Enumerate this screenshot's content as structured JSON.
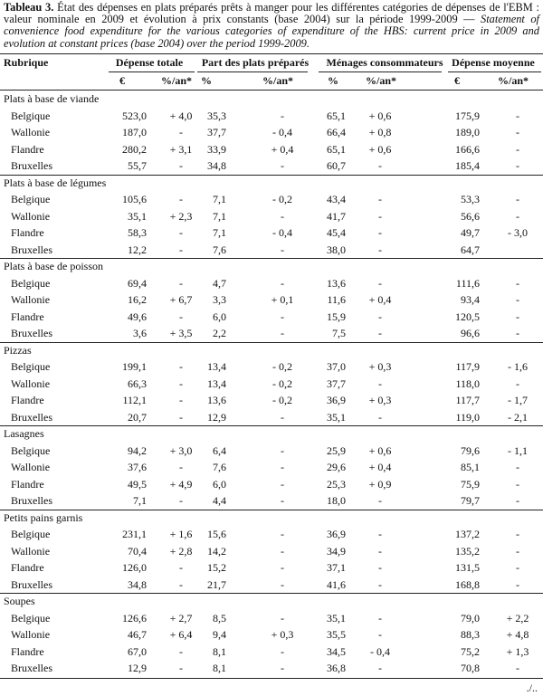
{
  "caption": {
    "label": "Tableau 3.",
    "text_fr": "État des dépenses en plats préparés prêts à manger pour les différentes catégories de dépenses de l'EBM : valeur nominale en 2009 et évolution à prix constants (base 2004) sur la période 1999-2009 — ",
    "text_en": "Statement of convenience food expenditure for the various categories of expenditure of the HBS: current price in 2009 and evolution at constant prices (base 2004) over the period 1999-2009."
  },
  "header": {
    "rubrique": "Rubrique",
    "groups": [
      "Dépense totale",
      "Part des plats préparés",
      "Ménages consommateurs",
      "Dépense moyenne"
    ],
    "subheaders": [
      "€",
      "%/an*",
      "%",
      "%/an*",
      "%",
      "%/an*",
      "€",
      "%/an*"
    ]
  },
  "sections": [
    {
      "title": "Plats à base de viande",
      "rows": [
        {
          "region": "Belgique",
          "cells": [
            "523,0",
            "+ 4,0",
            "35,3",
            "-",
            "65,1",
            "+ 0,6",
            "175,9",
            "-"
          ]
        },
        {
          "region": "Wallonie",
          "cells": [
            "187,0",
            "-",
            "37,7",
            "- 0,4",
            "66,4",
            "+ 0,8",
            "189,0",
            "-"
          ]
        },
        {
          "region": "Flandre",
          "cells": [
            "280,2",
            "+ 3,1",
            "33,9",
            "+ 0,4",
            "65,1",
            "+ 0,6",
            "166,6",
            "-"
          ]
        },
        {
          "region": "Bruxelles",
          "cells": [
            "55,7",
            "-",
            "34,8",
            "-",
            "60,7",
            "-",
            "185,4",
            "-"
          ]
        }
      ]
    },
    {
      "title": "Plats à base de légumes",
      "rows": [
        {
          "region": "Belgique",
          "cells": [
            "105,6",
            "-",
            "7,1",
            "- 0,2",
            "43,4",
            "-",
            "53,3",
            "-"
          ]
        },
        {
          "region": "Wallonie",
          "cells": [
            "35,1",
            "+ 2,3",
            "7,1",
            "-",
            "41,7",
            "-",
            "56,6",
            "-"
          ]
        },
        {
          "region": "Flandre",
          "cells": [
            "58,3",
            "-",
            "7,1",
            "- 0,4",
            "45,4",
            "-",
            "49,7",
            "- 3,0"
          ]
        },
        {
          "region": "Bruxelles",
          "cells": [
            "12,2",
            "-",
            "7,6",
            "-",
            "38,0",
            "-",
            "64,7",
            null
          ]
        }
      ]
    },
    {
      "title": "Plats à base de poisson",
      "rows": [
        {
          "region": "Belgique",
          "cells": [
            "69,4",
            "-",
            "4,7",
            "-",
            "13,6",
            "-",
            "111,6",
            "-"
          ]
        },
        {
          "region": "Wallonie",
          "cells": [
            "16,2",
            "+ 6,7",
            "3,3",
            "+ 0,1",
            "11,6",
            "+ 0,4",
            "93,4",
            "-"
          ]
        },
        {
          "region": "Flandre",
          "cells": [
            "49,6",
            "-",
            "6,0",
            "-",
            "15,9",
            "-",
            "120,5",
            "-"
          ]
        },
        {
          "region": "Bruxelles",
          "cells": [
            "3,6",
            "+ 3,5",
            "2,2",
            "-",
            "7,5",
            "-",
            "96,6",
            "-"
          ]
        }
      ]
    },
    {
      "title": "Pizzas",
      "rows": [
        {
          "region": "Belgique",
          "cells": [
            "199,1",
            "-",
            "13,4",
            "- 0,2",
            "37,0",
            "+ 0,3",
            "117,9",
            "- 1,6"
          ]
        },
        {
          "region": "Wallonie",
          "cells": [
            "66,3",
            "-",
            "13,4",
            "- 0,2",
            "37,7",
            "-",
            "118,0",
            "-"
          ]
        },
        {
          "region": "Flandre",
          "cells": [
            "112,1",
            "-",
            "13,6",
            "- 0,2",
            "36,9",
            "+ 0,3",
            "117,7",
            "- 1,7"
          ]
        },
        {
          "region": "Bruxelles",
          "cells": [
            "20,7",
            "-",
            "12,9",
            "-",
            "35,1",
            "-",
            "119,0",
            "- 2,1"
          ]
        }
      ]
    },
    {
      "title": "Lasagnes",
      "rows": [
        {
          "region": "Belgique",
          "cells": [
            "94,2",
            "+ 3,0",
            "6,4",
            "-",
            "25,9",
            "+ 0,6",
            "79,6",
            "- 1,1"
          ]
        },
        {
          "region": "Wallonie",
          "cells": [
            "37,6",
            "-",
            "7,6",
            "-",
            "29,6",
            "+ 0,4",
            "85,1",
            "-"
          ]
        },
        {
          "region": "Flandre",
          "cells": [
            "49,5",
            "+ 4,9",
            "6,0",
            "-",
            "25,3",
            "+ 0,9",
            "75,9",
            "-"
          ]
        },
        {
          "region": "Bruxelles",
          "cells": [
            "7,1",
            "-",
            "4,4",
            "-",
            "18,0",
            "-",
            "79,7",
            "-"
          ]
        }
      ]
    },
    {
      "title": "Petits pains garnis",
      "rows": [
        {
          "region": "Belgique",
          "cells": [
            "231,1",
            "+ 1,6",
            "15,6",
            "-",
            "36,9",
            "-",
            "137,2",
            "-"
          ]
        },
        {
          "region": "Wallonie",
          "cells": [
            "70,4",
            "+ 2,8",
            "14,2",
            "-",
            "34,9",
            "-",
            "135,2",
            "-"
          ]
        },
        {
          "region": "Flandre",
          "cells": [
            "126,0",
            "-",
            "15,2",
            "-",
            "37,1",
            "-",
            "131,5",
            "-"
          ]
        },
        {
          "region": "Bruxelles",
          "cells": [
            "34,8",
            "-",
            "21,7",
            "-",
            "41,6",
            "-",
            "168,8",
            "-"
          ]
        }
      ]
    },
    {
      "title": "Soupes",
      "rows": [
        {
          "region": "Belgique",
          "cells": [
            "126,6",
            "+ 2,7",
            "8,5",
            "-",
            "35,1",
            "-",
            "79,0",
            "+ 2,2"
          ]
        },
        {
          "region": "Wallonie",
          "cells": [
            "46,7",
            "+ 6,4",
            "9,4",
            "+ 0,3",
            "35,5",
            "-",
            "88,3",
            "+ 4,8"
          ]
        },
        {
          "region": "Flandre",
          "cells": [
            "67,0",
            "-",
            "8,1",
            "-",
            "34,5",
            "- 0,4",
            "75,2",
            "+ 1,3"
          ]
        },
        {
          "region": "Bruxelles",
          "cells": [
            "12,9",
            "-",
            "8,1",
            "-",
            "36,8",
            "-",
            "70,8",
            "-"
          ]
        }
      ]
    }
  ],
  "footer": "./.."
}
